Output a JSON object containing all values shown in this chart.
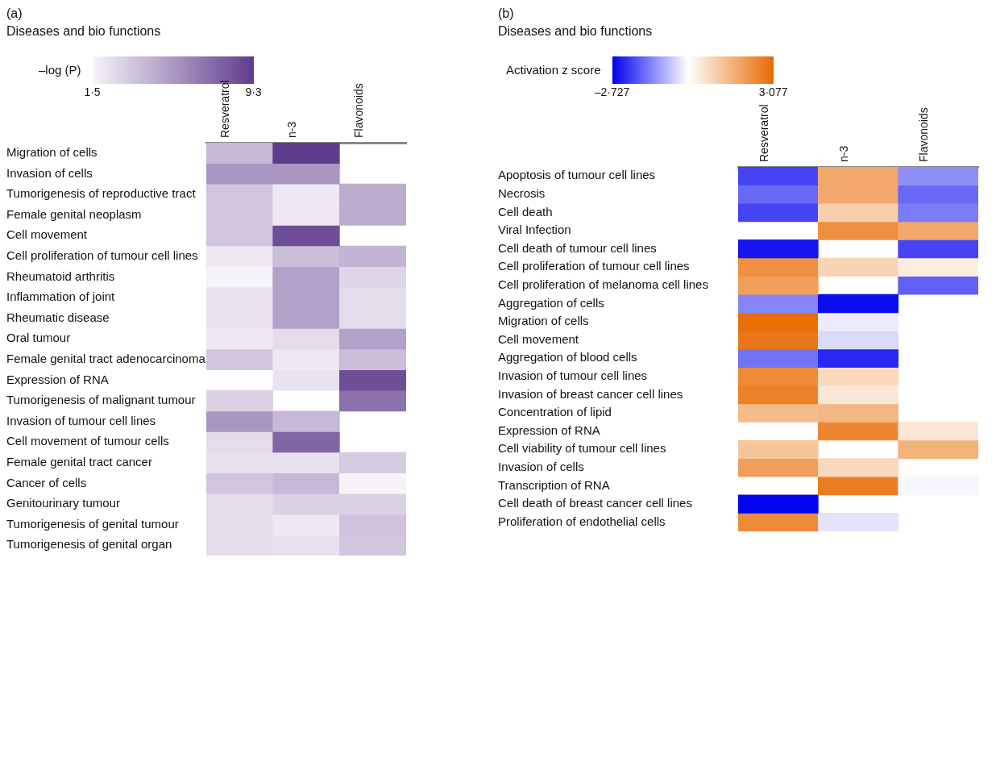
{
  "chart_data": [
    {
      "type": "heatmap",
      "title": "(a)",
      "subtitle": "Diseases and bio functions",
      "clabel": "–log (P)",
      "categories": [
        "Resveratrol",
        "n-3",
        "Flavonoids"
      ],
      "y_categories": [
        "Migration of cells",
        "Invasion of cells",
        "Tumorigenesis of reproductive tract",
        "Female genital neoplasm",
        "Cell movement",
        "Cell proliferation of tumour cell lines",
        "Rheumatoid arthritis",
        "Inflammation of joint",
        "Rheumatic disease",
        "Oral tumour",
        "Female genital tract adenocarcinoma",
        "Expression of RNA",
        "Tumorigenesis of malignant tumour",
        "Invasion of tumour cell lines",
        "Cell movement of tumour cells",
        "Female genital tract cancer",
        "Cancer of cells",
        "Genitourinary tumour",
        "Tumorigenesis of genital tumour",
        "Tumorigenesis of genital organ"
      ],
      "cells": [
        [
          4,
          9.3,
          null
        ],
        [
          5.5,
          5.5,
          null
        ],
        [
          3.5,
          2,
          4.5
        ],
        [
          3.5,
          2,
          4.5
        ],
        [
          3.5,
          8.5,
          null
        ],
        [
          2,
          3.8,
          4.2
        ],
        [
          1.6,
          5,
          2.8
        ],
        [
          2.2,
          5,
          2.5
        ],
        [
          2.2,
          5,
          2.5
        ],
        [
          2,
          2.5,
          5
        ],
        [
          3.5,
          2,
          3.8
        ],
        [
          null,
          2.2,
          8.5
        ],
        [
          3,
          null,
          7
        ],
        [
          5.5,
          4,
          null
        ],
        [
          2.5,
          7.5,
          null
        ],
        [
          2.3,
          2.3,
          3.2
        ],
        [
          3.5,
          4,
          1.5
        ],
        [
          2.5,
          3,
          3
        ],
        [
          2.5,
          2,
          3.6
        ],
        [
          2.5,
          2.3,
          3.4
        ]
      ],
      "clim": [
        1.5,
        9.3
      ],
      "cticks": [
        {
          "value": 1.5,
          "label": "1·5"
        },
        {
          "value": 9.3,
          "label": "9·3"
        }
      ]
    },
    {
      "type": "heatmap",
      "title": "(b)",
      "subtitle": "Diseases and bio functions",
      "clabel": "Activation z score",
      "categories": [
        "Resveratrol",
        "n-3",
        "Flavonoids"
      ],
      "y_categories": [
        "Apoptosis of tumour cell lines",
        "Necrosis",
        "Cell death",
        "Viral Infection",
        "Cell death of tumour cell lines",
        "Cell proliferation of tumour cell lines",
        "Cell proliferation of melanoma cell lines",
        "Aggregation of cells",
        "Migration of cells",
        "Cell movement",
        "Aggregation of blood cells",
        "Invasion of tumour cell lines",
        "Invasion of breast cancer cell lines",
        "Concentration of lipid",
        "Expression of RNA",
        "Cell viability of tumour cell lines",
        "Invasion of cells",
        "Transcription of RNA",
        "Cell death of breast cancer cell lines",
        "Proliferation of endothelial cells"
      ],
      "cells": [
        [
          -2,
          1.8,
          -1.2
        ],
        [
          -1.6,
          1.8,
          -1.6
        ],
        [
          -2,
          1,
          -1.4
        ],
        [
          null,
          2.3,
          1.8
        ],
        [
          -2.5,
          null,
          -2
        ],
        [
          2.3,
          0.9,
          0.4
        ],
        [
          2,
          null,
          -1.7
        ],
        [
          -1.3,
          -2.6,
          null
        ],
        [
          3,
          -0.2,
          null
        ],
        [
          2.8,
          -0.4,
          null
        ],
        [
          -1.5,
          -2.3,
          null
        ],
        [
          2.4,
          0.8,
          null
        ],
        [
          2.6,
          0.5,
          null
        ],
        [
          1.4,
          1.5,
          null
        ],
        [
          null,
          2.5,
          0.5
        ],
        [
          1.2,
          null,
          1.6
        ],
        [
          2,
          0.8,
          null
        ],
        [
          null,
          2.7,
          -0.1
        ],
        [
          -2.7,
          null,
          null
        ],
        [
          2.4,
          -0.3,
          null
        ]
      ],
      "clim": [
        -2.727,
        3.077
      ],
      "cticks": [
        {
          "value": -2.727,
          "label": "–2·727"
        },
        {
          "value": 3.077,
          "label": "3·077"
        }
      ]
    }
  ]
}
